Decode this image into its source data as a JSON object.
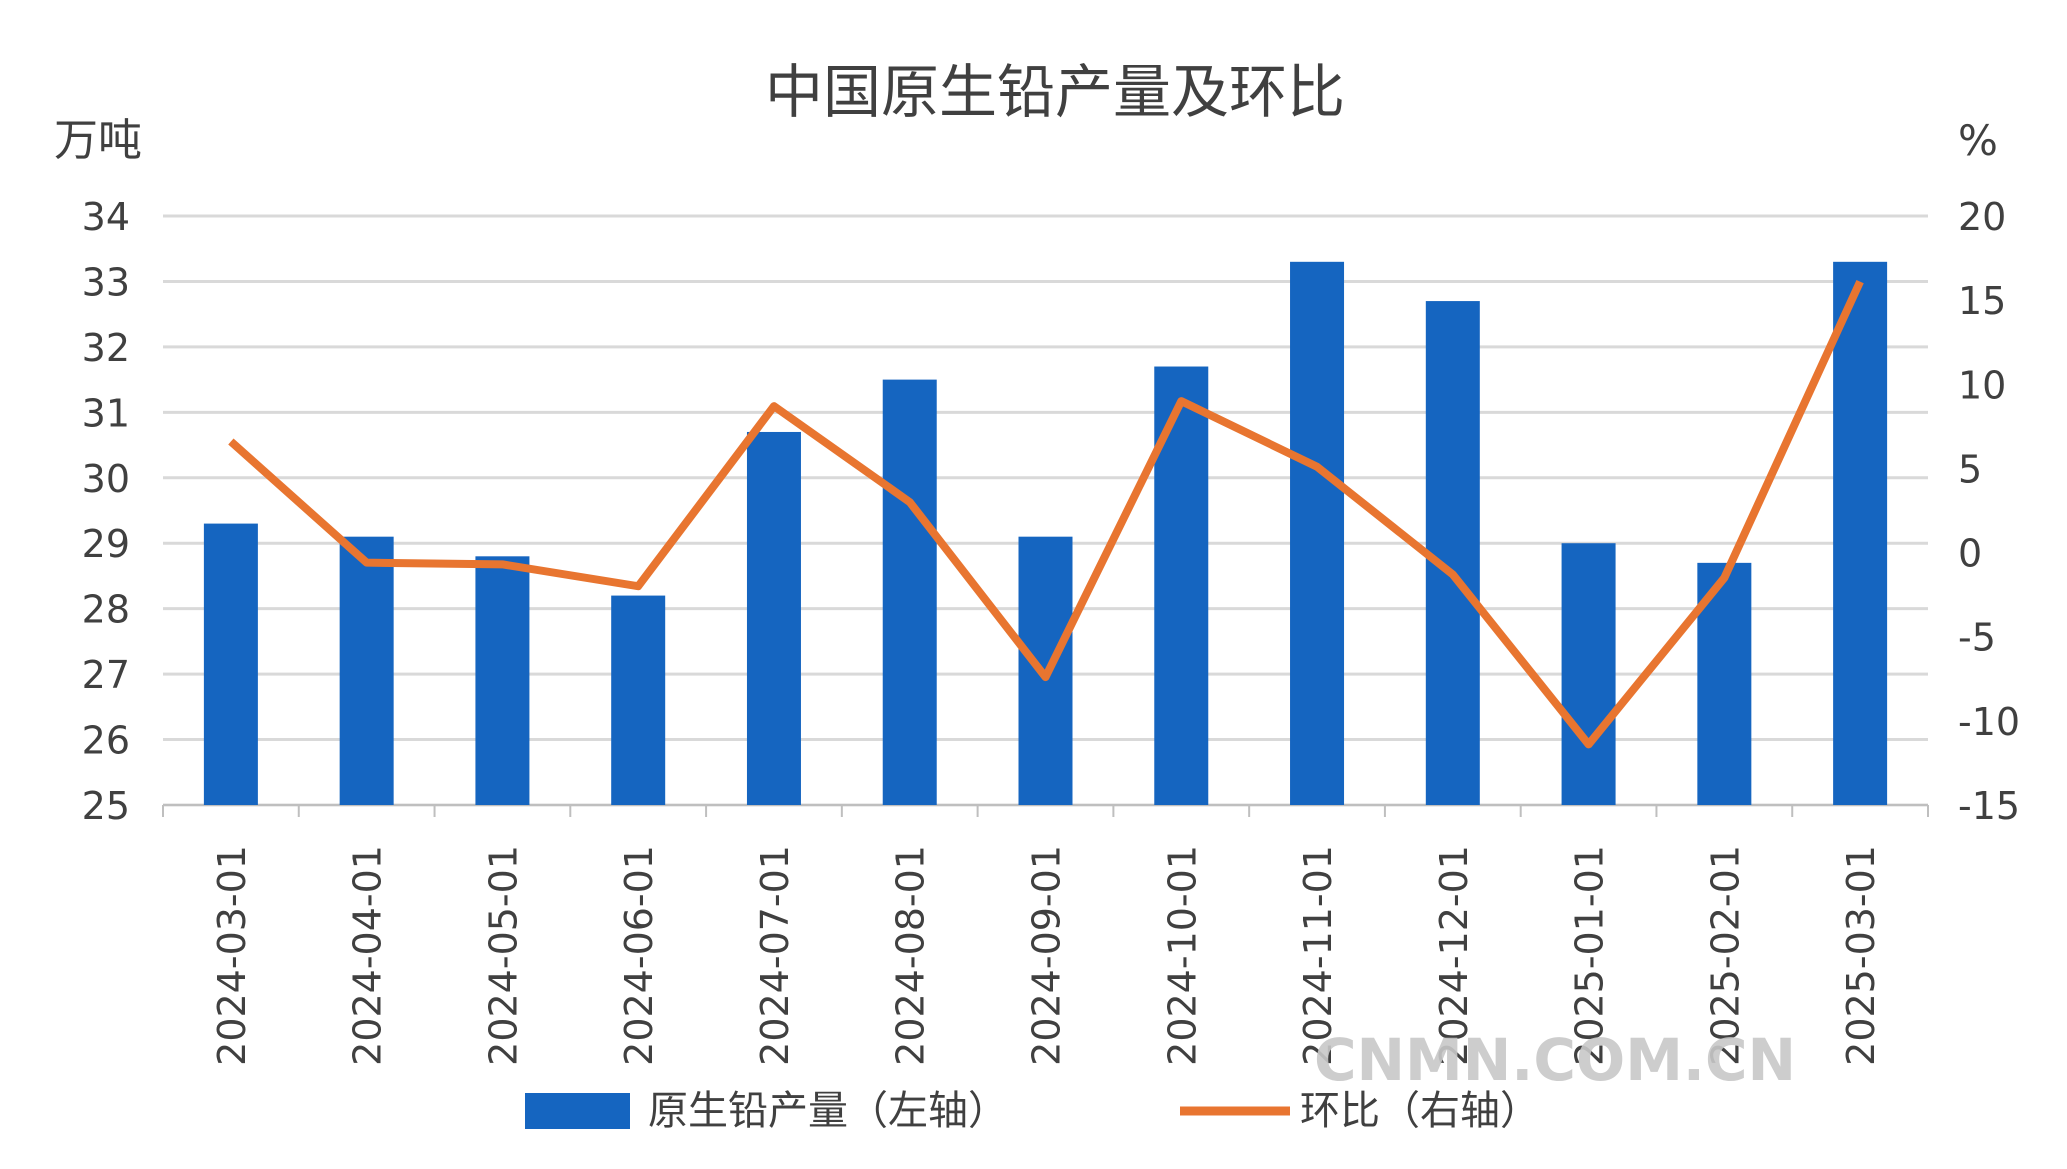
{
  "chart_data": {
    "type": "bar+line",
    "title": "中国原生铅产量及环比",
    "ylabel_left": "万吨",
    "ylabel_right": "%",
    "categories": [
      "2024-03-01",
      "2024-04-01",
      "2024-05-01",
      "2024-06-01",
      "2024-07-01",
      "2024-08-01",
      "2024-09-01",
      "2024-10-01",
      "2024-11-01",
      "2024-12-01",
      "2025-01-01",
      "2025-02-01",
      "2025-03-01"
    ],
    "series": [
      {
        "name": "原生铅产量（左轴）",
        "type": "bar",
        "axis": "left",
        "color": "#1565C0",
        "values": [
          29.3,
          29.1,
          28.8,
          28.2,
          30.7,
          31.5,
          29.1,
          31.7,
          33.3,
          32.7,
          29.0,
          28.7,
          33.3
        ]
      },
      {
        "name": "环比（右轴）",
        "type": "line",
        "axis": "right",
        "color": "#E87530",
        "values": [
          6.6,
          -0.6,
          -0.7,
          -2.0,
          8.7,
          3.0,
          -7.4,
          9.0,
          5.1,
          -1.3,
          -11.4,
          -1.5,
          16.1
        ]
      }
    ],
    "ylim_left": [
      25,
      34
    ],
    "yticks_left": [
      "25",
      "26",
      "27",
      "28",
      "29",
      "30",
      "31",
      "32",
      "33",
      "34"
    ],
    "ylim_right": [
      -15,
      20
    ],
    "yticks_right": [
      "-15",
      "-10",
      "-5",
      "0",
      "5",
      "10",
      "15",
      "20"
    ],
    "grid": true,
    "legend": "bottom"
  },
  "watermark": "CNMN.COM.CN"
}
